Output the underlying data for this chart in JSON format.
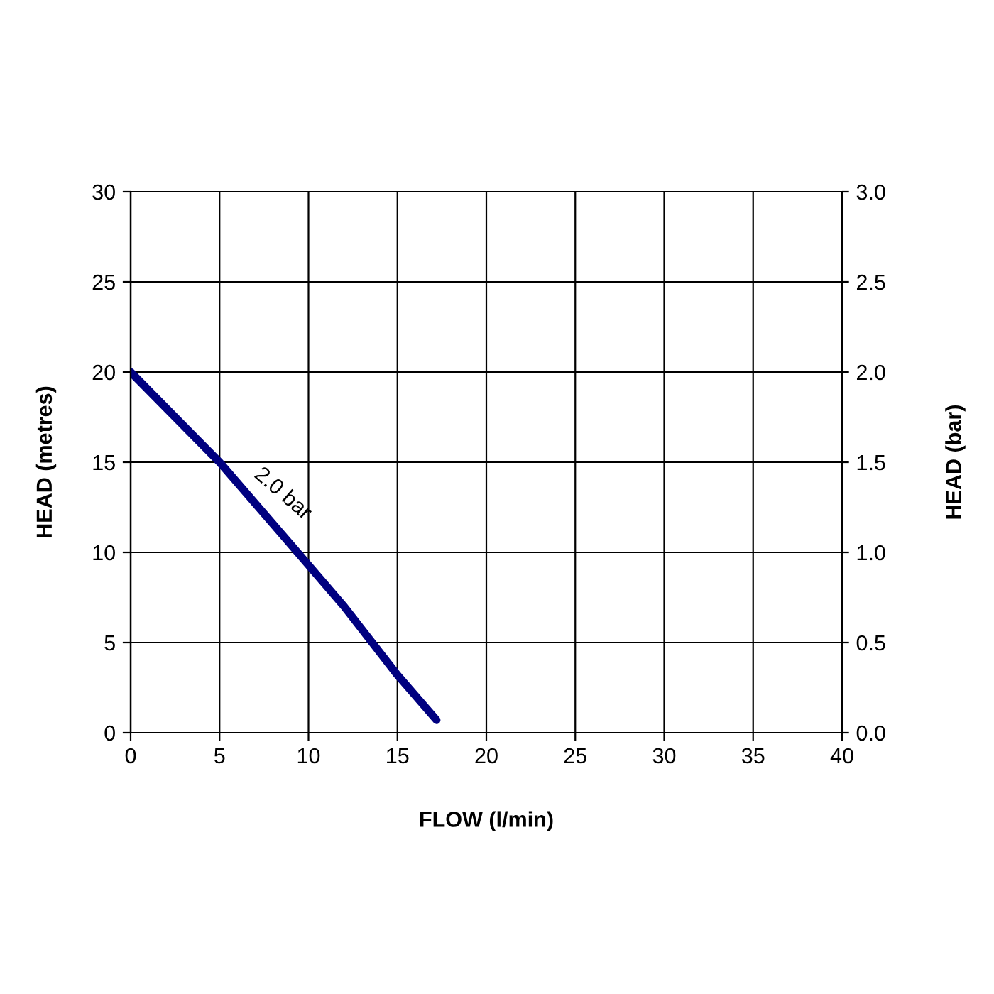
{
  "chart_data": {
    "type": "line",
    "xlabel": "FLOW (l/min)",
    "ylabel": "HEAD (metres)",
    "y2label": "HEAD (bar)",
    "series": [
      {
        "name": "2.0 bar",
        "color": "#000080",
        "x": [
          0,
          5,
          10,
          12,
          15,
          17.2
        ],
        "values": [
          20,
          15,
          9.3,
          7.0,
          3.2,
          0.7
        ]
      }
    ],
    "xlim": [
      0,
      40
    ],
    "xticks": [
      0,
      5,
      10,
      15,
      20,
      25,
      30,
      35,
      40
    ],
    "ylim": [
      0,
      30
    ],
    "yticks": [
      0,
      5,
      10,
      15,
      20,
      25,
      30
    ],
    "y2lim": [
      0,
      3
    ],
    "y2ticks": [
      {
        "value": 0,
        "label": "0.0"
      },
      {
        "value": 0.5,
        "label": "0.5"
      },
      {
        "value": 1,
        "label": "1.0"
      },
      {
        "value": 1.5,
        "label": "1.5"
      },
      {
        "value": 2,
        "label": "2.0"
      },
      {
        "value": 2.5,
        "label": "2.5"
      },
      {
        "value": 3,
        "label": "3.0"
      }
    ],
    "grid": true,
    "marker": "none",
    "line_style": "solid"
  }
}
